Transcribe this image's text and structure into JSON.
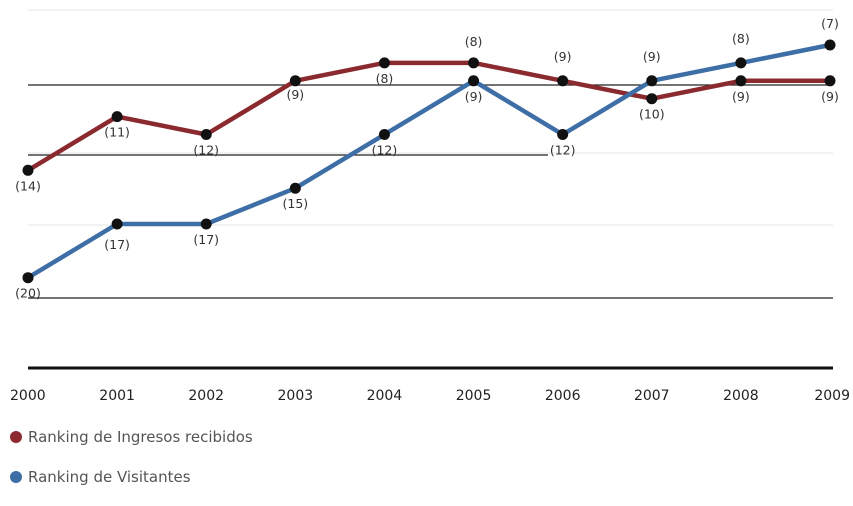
{
  "chart_data": {
    "type": "line",
    "x": [
      "2000",
      "2001",
      "2002",
      "2003",
      "2004",
      "2005",
      "2006",
      "2007",
      "2008",
      "2009"
    ],
    "series": [
      {
        "name": "Ranking de Ingresos recibidos",
        "color": "#8B2A2E",
        "values": [
          14,
          11,
          12,
          9,
          8,
          8,
          9,
          10,
          9,
          9
        ],
        "labels": [
          "(14)",
          "(11)",
          "(12)",
          "(9)",
          "(8)",
          "(8)",
          "(9)",
          "(10)",
          "(9)",
          "(9)"
        ]
      },
      {
        "name": "Ranking de Visitantes",
        "color": "#3E6EA6",
        "values": [
          20,
          17,
          17,
          15,
          12,
          9,
          12,
          9,
          8,
          7
        ],
        "labels": [
          "(20)",
          "(17)",
          "(17)",
          "(15)",
          "(12)",
          "(9)",
          "(12)",
          "(9)",
          "(8)",
          "(7)"
        ]
      }
    ],
    "y_inverted": true,
    "grid": true,
    "legend_position": "bottom-left"
  }
}
